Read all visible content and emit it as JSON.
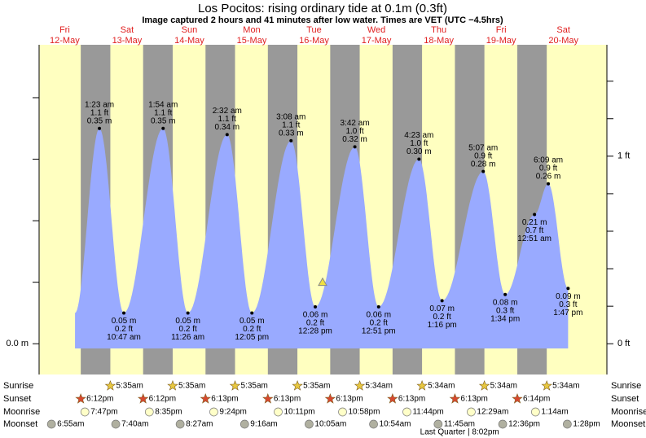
{
  "chart_data": {
    "type": "tide",
    "title": "Los Pocitos: rising  ordinary tide at 0.1m (0.3ft)",
    "subtitle": "Image captured 2 hours and 41 minutes after low water. Times are VET (UTC −4.5hrs)",
    "now_m": 0.1,
    "ylim": [
      -0.05,
      0.486
    ],
    "yticks": [
      {
        "value": 0,
        "label": "0.0 m"
      }
    ],
    "yminor": [
      0.1,
      0.2,
      0.3,
      0.4
    ],
    "y2lim": [
      -0.164,
      1.594
    ],
    "y2ticks": [
      {
        "value": 0,
        "label": "0 ft"
      },
      {
        "value": 1,
        "label": "1 ft"
      }
    ],
    "y2minor": [
      0.2,
      0.4,
      0.6,
      0.8,
      1.2,
      1.4
    ],
    "row_labels": {
      "sunrise": "Sunrise",
      "sunset": "Sunset",
      "moonrise": "Moonrise",
      "moonset": "Moonset"
    },
    "days": [
      {
        "dow": "Fri",
        "date": "12-May",
        "sunrise": null,
        "sunset": "6:12pm",
        "moonrise": "7:47pm",
        "moonset": "6:55am",
        "tides": []
      },
      {
        "dow": "Sat",
        "date": "13-May",
        "sunrise": "5:35am",
        "sunset": "6:12pm",
        "moonrise": "8:35pm",
        "moonset": "7:40am",
        "tides": [
          {
            "time": "1:23 am",
            "m": 0.35,
            "m_label": "0.35 m",
            "ft_label": "1.1 ft"
          },
          {
            "time": "10:47 am",
            "m": 0.05,
            "m_label": "0.05 m",
            "ft_label": "0.2 ft"
          }
        ]
      },
      {
        "dow": "Sun",
        "date": "14-May",
        "sunrise": "5:35am",
        "sunset": "6:13pm",
        "moonrise": "9:24pm",
        "moonset": "8:27am",
        "tides": [
          {
            "time": "1:54 am",
            "m": 0.35,
            "m_label": "0.35 m",
            "ft_label": "1.1 ft"
          },
          {
            "time": "11:26 am",
            "m": 0.05,
            "m_label": "0.05 m",
            "ft_label": "0.2 ft"
          }
        ]
      },
      {
        "dow": "Mon",
        "date": "15-May",
        "sunrise": "5:35am",
        "sunset": "6:13pm",
        "moonrise": "10:11pm",
        "moonset": "9:16am",
        "tides": [
          {
            "time": "2:32 am",
            "m": 0.34,
            "m_label": "0.34 m",
            "ft_label": "1.1 ft"
          },
          {
            "time": "12:05 pm",
            "m": 0.05,
            "m_label": "0.05 m",
            "ft_label": "0.2 ft"
          }
        ]
      },
      {
        "dow": "Tue",
        "date": "16-May",
        "sunrise": "5:35am",
        "sunset": "6:13pm",
        "moonrise": "10:58pm",
        "moonset": "10:05am",
        "tides": [
          {
            "time": "3:08 am",
            "m": 0.33,
            "m_label": "0.33 m",
            "ft_label": "1.1 ft"
          },
          {
            "time": "12:28 pm",
            "m": 0.06,
            "m_label": "0.06 m",
            "ft_label": "0.2 ft"
          }
        ]
      },
      {
        "dow": "Wed",
        "date": "17-May",
        "sunrise": "5:34am",
        "sunset": "6:13pm",
        "moonrise": "11:44pm",
        "moonset": "10:54am",
        "tides": [
          {
            "time": "3:42 am",
            "m": 0.32,
            "m_label": "0.32 m",
            "ft_label": "1.0 ft"
          },
          {
            "time": "12:51 pm",
            "m": 0.06,
            "m_label": "0.06 m",
            "ft_label": "0.2 ft"
          }
        ]
      },
      {
        "dow": "Thu",
        "date": "18-May",
        "sunrise": "5:34am",
        "sunset": "6:13pm",
        "moonrise": null,
        "moonset": "11:45am",
        "phase": "Last Quarter | 8:02pm",
        "tides": [
          {
            "time": "4:23 am",
            "m": 0.3,
            "m_label": "0.30 m",
            "ft_label": "1.0 ft"
          },
          {
            "time": "1:16 pm",
            "m": 0.07,
            "m_label": "0.07 m",
            "ft_label": "0.2 ft"
          }
        ]
      },
      {
        "dow": "Fri",
        "date": "19-May",
        "sunrise": "5:34am",
        "sunset": "6:14pm",
        "moonrise": "12:29am",
        "moonset": "12:36pm",
        "tides": [
          {
            "time": "5:07 am",
            "m": 0.28,
            "m_label": "0.28 m",
            "ft_label": "0.9 ft"
          },
          {
            "time": "1:34 pm",
            "m": 0.08,
            "m_label": "0.08 m",
            "ft_label": "0.3 ft"
          }
        ]
      },
      {
        "dow": "Sat",
        "date": "20-May",
        "sunrise": "5:34am",
        "sunset": null,
        "moonrise": "1:14am",
        "moonset": "1:28pm",
        "tides": [
          {
            "time": "12:51 am",
            "m": 0.21,
            "m_label": "0.21 m",
            "ft_label": "0.7 ft"
          },
          {
            "time": "6:09 am",
            "m": 0.26,
            "m_label": "0.26 m",
            "ft_label": "0.9 ft"
          },
          {
            "time": "1:47 pm",
            "m": 0.09,
            "m_label": "0.09 m",
            "ft_label": "0.3 ft"
          }
        ]
      }
    ]
  }
}
